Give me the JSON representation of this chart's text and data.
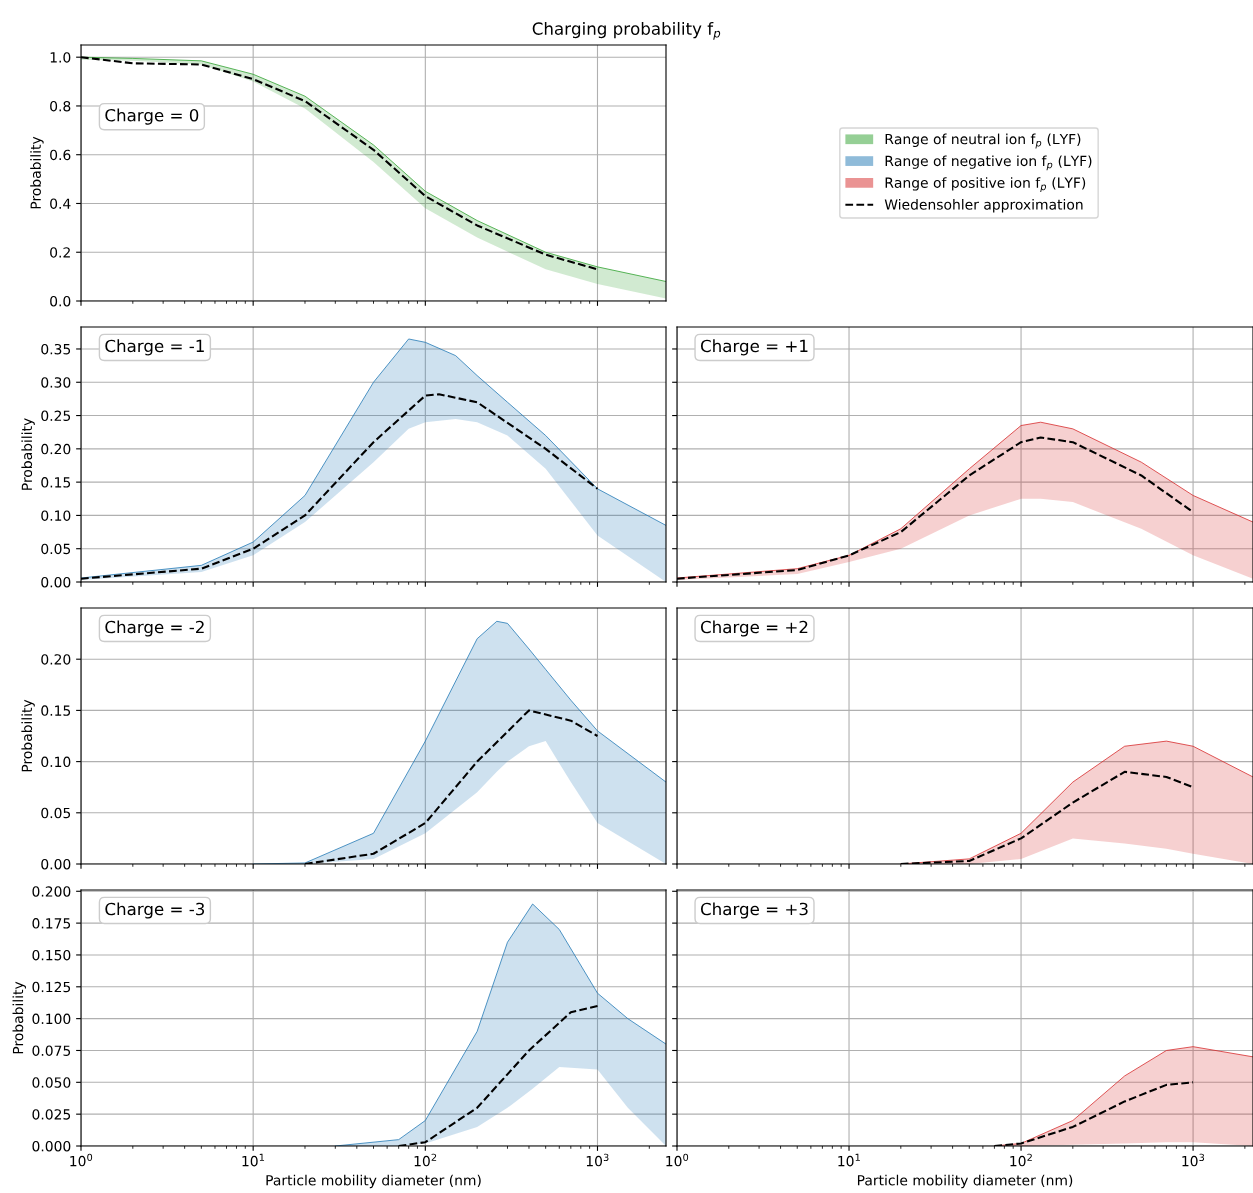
{
  "chart_data": [
    {
      "type": "line",
      "title": "Charging probability f$_{p}$",
      "ylabel": "Probability",
      "annotations": [
        "Charge = 0"
      ],
      "log": "x",
      "grid": true,
      "legend": "right",
      "tick_labels": "y",
      "xlim": [
        1,
        2500
      ],
      "xticks": [
        {
          "value": 1,
          "label": null
        },
        {
          "value": 10,
          "label": null
        },
        {
          "value": 100,
          "label": null
        },
        {
          "value": 1000,
          "label": null
        }
      ],
      "ylim": [
        0,
        1.05
      ],
      "yticks": [
        {
          "value": 0,
          "label": "0.0"
        },
        {
          "value": 0.2,
          "label": "0.2"
        },
        {
          "value": 0.4,
          "label": "0.4"
        },
        {
          "value": 0.6,
          "label": "0.6"
        },
        {
          "value": 0.8,
          "label": "0.8"
        },
        {
          "value": 1,
          "label": "1.0"
        }
      ],
      "series": [
        {
          "name": "Range of neutral ion f$_{p}$ (LYF)",
          "color": "#2ca02c",
          "x": [
            1,
            2,
            5,
            10,
            20,
            50,
            100,
            200,
            500,
            1000,
            2500
          ],
          "lower": [
            0.99,
            0.985,
            0.97,
            0.9,
            0.79,
            0.57,
            0.38,
            0.26,
            0.13,
            0.07,
            0.01
          ],
          "upper": [
            1.0,
            0.995,
            0.985,
            0.93,
            0.84,
            0.64,
            0.45,
            0.33,
            0.2,
            0.14,
            0.08
          ],
          "values": [
            1.0,
            0.995,
            0.985,
            0.93,
            0.84,
            0.64,
            0.45,
            0.33,
            0.2,
            0.14,
            0.08
          ]
        },
        {
          "name": "Wiedensohler approximation",
          "color": "#000000",
          "line_style": "dashed",
          "x": [
            1,
            2,
            5,
            10,
            20,
            50,
            100,
            200,
            500,
            1000
          ],
          "values": [
            1.0,
            0.975,
            0.97,
            0.91,
            0.82,
            0.62,
            0.43,
            0.31,
            0.19,
            0.13
          ]
        }
      ]
    },
    {
      "type": "line",
      "ylabel": "Probability",
      "annotations": [
        "Charge = -1"
      ],
      "log": "x",
      "grid": true,
      "tick_labels": "y",
      "xlim": [
        1,
        2500
      ],
      "xticks": [
        {
          "value": 1,
          "label": null
        },
        {
          "value": 10,
          "label": null
        },
        {
          "value": 100,
          "label": null
        },
        {
          "value": 1000,
          "label": null
        }
      ],
      "ylim": [
        0,
        0.383
      ],
      "yticks": [
        {
          "value": 0,
          "label": "0.00"
        },
        {
          "value": 0.05,
          "label": "0.05"
        },
        {
          "value": 0.1,
          "label": "0.10"
        },
        {
          "value": 0.15,
          "label": "0.15"
        },
        {
          "value": 0.2,
          "label": "0.20"
        },
        {
          "value": 0.25,
          "label": "0.25"
        },
        {
          "value": 0.3,
          "label": "0.30"
        },
        {
          "value": 0.35,
          "label": "0.35"
        }
      ],
      "series": [
        {
          "name": "Range of negative ion f$_{p}$ (LYF)",
          "color": "#1f77b4",
          "x": [
            1,
            5,
            10,
            20,
            50,
            80,
            100,
            150,
            200,
            300,
            500,
            1000,
            2500
          ],
          "lower": [
            0.003,
            0.015,
            0.04,
            0.09,
            0.18,
            0.23,
            0.24,
            0.245,
            0.24,
            0.22,
            0.17,
            0.07,
            0.0
          ],
          "upper": [
            0.006,
            0.025,
            0.06,
            0.13,
            0.3,
            0.365,
            0.36,
            0.34,
            0.31,
            0.27,
            0.22,
            0.14,
            0.085
          ],
          "values": [
            0.006,
            0.025,
            0.06,
            0.13,
            0.3,
            0.365,
            0.36,
            0.34,
            0.31,
            0.27,
            0.22,
            0.14,
            0.085
          ]
        },
        {
          "color": "#000000",
          "line_style": "dashed",
          "x": [
            1,
            5,
            10,
            20,
            50,
            100,
            120,
            200,
            500,
            1000
          ],
          "values": [
            0.005,
            0.02,
            0.05,
            0.1,
            0.21,
            0.28,
            0.282,
            0.27,
            0.2,
            0.14
          ]
        }
      ]
    },
    {
      "type": "line",
      "annotations": [
        "Charge = +1"
      ],
      "log": "x",
      "grid": true,
      "tick_labels": false,
      "xlim": [
        1,
        2230
      ],
      "xticks": [
        {
          "value": 1,
          "label": null
        },
        {
          "value": 10,
          "label": null
        },
        {
          "value": 100,
          "label": null
        },
        {
          "value": 1000,
          "label": null
        }
      ],
      "ylim": [
        0,
        0.383
      ],
      "yticks": [
        {
          "value": 0,
          "label": null
        },
        {
          "value": 0.05,
          "label": null
        },
        {
          "value": 0.1,
          "label": null
        },
        {
          "value": 0.15,
          "label": null
        },
        {
          "value": 0.2,
          "label": null
        },
        {
          "value": 0.25,
          "label": null
        },
        {
          "value": 0.3,
          "label": null
        },
        {
          "value": 0.35,
          "label": null
        }
      ],
      "series": [
        {
          "name": "Range of positive ion f$_{p}$ (LYF)",
          "color": "#d62728",
          "x": [
            1,
            5,
            10,
            20,
            50,
            100,
            130,
            200,
            500,
            1000,
            2230
          ],
          "lower": [
            0.003,
            0.012,
            0.03,
            0.05,
            0.1,
            0.125,
            0.125,
            0.12,
            0.08,
            0.04,
            0.005
          ],
          "upper": [
            0.006,
            0.02,
            0.04,
            0.08,
            0.17,
            0.235,
            0.24,
            0.23,
            0.18,
            0.13,
            0.09
          ],
          "values": [
            0.006,
            0.02,
            0.04,
            0.08,
            0.17,
            0.235,
            0.24,
            0.23,
            0.18,
            0.13,
            0.09
          ]
        },
        {
          "color": "#000000",
          "line_style": "dashed",
          "x": [
            1,
            5,
            10,
            20,
            50,
            100,
            130,
            200,
            500,
            1000
          ],
          "values": [
            0.005,
            0.018,
            0.04,
            0.075,
            0.16,
            0.21,
            0.217,
            0.21,
            0.16,
            0.105
          ]
        }
      ]
    },
    {
      "type": "line",
      "ylabel": "Probability",
      "annotations": [
        "Charge = -2"
      ],
      "log": "x",
      "grid": true,
      "tick_labels": "y",
      "xlim": [
        1,
        2500
      ],
      "xticks": [
        {
          "value": 1,
          "label": null
        },
        {
          "value": 10,
          "label": null
        },
        {
          "value": 100,
          "label": null
        },
        {
          "value": 1000,
          "label": null
        }
      ],
      "ylim": [
        0,
        0.25
      ],
      "yticks": [
        {
          "value": 0,
          "label": "0.00"
        },
        {
          "value": 0.05,
          "label": "0.05"
        },
        {
          "value": 0.1,
          "label": "0.10"
        },
        {
          "value": 0.15,
          "label": "0.15"
        },
        {
          "value": 0.2,
          "label": "0.20"
        }
      ],
      "series": [
        {
          "color": "#1f77b4",
          "x": [
            10,
            20,
            50,
            100,
            200,
            260,
            300,
            400,
            500,
            700,
            1000,
            2500
          ],
          "lower": [
            0,
            0,
            0.005,
            0.03,
            0.07,
            0.09,
            0.1,
            0.115,
            0.12,
            0.08,
            0.04,
            0.0
          ],
          "upper": [
            0,
            0.001,
            0.03,
            0.12,
            0.22,
            0.237,
            0.235,
            0.21,
            0.19,
            0.16,
            0.13,
            0.08
          ],
          "values": [
            0,
            0.001,
            0.03,
            0.12,
            0.22,
            0.237,
            0.235,
            0.21,
            0.19,
            0.16,
            0.13,
            0.08
          ]
        },
        {
          "color": "#000000",
          "line_style": "dashed",
          "x": [
            20,
            50,
            100,
            200,
            400,
            700,
            1000
          ],
          "values": [
            0.0,
            0.01,
            0.04,
            0.1,
            0.15,
            0.14,
            0.125
          ]
        }
      ]
    },
    {
      "type": "line",
      "annotations": [
        "Charge = +2"
      ],
      "log": "x",
      "grid": true,
      "tick_labels": false,
      "xlim": [
        1,
        2230
      ],
      "xticks": [
        {
          "value": 1,
          "label": null
        },
        {
          "value": 10,
          "label": null
        },
        {
          "value": 100,
          "label": null
        },
        {
          "value": 1000,
          "label": null
        }
      ],
      "ylim": [
        0,
        0.25
      ],
      "yticks": [
        {
          "value": 0,
          "label": null
        },
        {
          "value": 0.05,
          "label": null
        },
        {
          "value": 0.1,
          "label": null
        },
        {
          "value": 0.15,
          "label": null
        },
        {
          "value": 0.2,
          "label": null
        }
      ],
      "series": [
        {
          "color": "#d62728",
          "x": [
            20,
            50,
            100,
            200,
            400,
            700,
            1000,
            2230
          ],
          "lower": [
            0,
            0,
            0.005,
            0.025,
            0.02,
            0.015,
            0.01,
            0.0
          ],
          "upper": [
            0,
            0.005,
            0.03,
            0.08,
            0.115,
            0.12,
            0.115,
            0.085
          ],
          "values": [
            0,
            0.005,
            0.03,
            0.08,
            0.115,
            0.12,
            0.115,
            0.085
          ]
        },
        {
          "color": "#000000",
          "line_style": "dashed",
          "x": [
            20,
            50,
            100,
            200,
            400,
            700,
            1000
          ],
          "values": [
            0,
            0.003,
            0.025,
            0.06,
            0.09,
            0.085,
            0.075
          ]
        }
      ]
    },
    {
      "type": "line",
      "ylabel": "Probability",
      "xlabel": "Particle mobility diameter (nm)",
      "annotations": [
        "Charge = -3"
      ],
      "log": "x",
      "grid": true,
      "xlim": [
        1,
        2500
      ],
      "xticks": [
        {
          "value": 1,
          "label": "10$^{0}$"
        },
        {
          "value": 10,
          "label": "10$^{1}$"
        },
        {
          "value": 100,
          "label": "10$^{2}$"
        },
        {
          "value": 1000,
          "label": "10$^{3}$"
        }
      ],
      "ylim": [
        0,
        0.201
      ],
      "yticks": [
        {
          "value": 0,
          "label": "0.000"
        },
        {
          "value": 0.025,
          "label": "0.025"
        },
        {
          "value": 0.05,
          "label": "0.050"
        },
        {
          "value": 0.075,
          "label": "0.075"
        },
        {
          "value": 0.1,
          "label": "0.100"
        },
        {
          "value": 0.125,
          "label": "0.125"
        },
        {
          "value": 0.15,
          "label": "0.150"
        },
        {
          "value": 0.175,
          "label": "0.175"
        },
        {
          "value": 0.2,
          "label": "0.200"
        }
      ],
      "series": [
        {
          "color": "#1f77b4",
          "x": [
            30,
            70,
            100,
            200,
            300,
            420,
            600,
            1000,
            1500,
            2500
          ],
          "lower": [
            0,
            0,
            0.002,
            0.015,
            0.03,
            0.045,
            0.062,
            0.06,
            0.03,
            0.0
          ],
          "upper": [
            0,
            0.005,
            0.02,
            0.09,
            0.16,
            0.19,
            0.17,
            0.12,
            0.1,
            0.08
          ],
          "values": [
            0,
            0.005,
            0.02,
            0.09,
            0.16,
            0.19,
            0.17,
            0.12,
            0.1,
            0.08
          ]
        },
        {
          "color": "#000000",
          "line_style": "dashed",
          "x": [
            70,
            100,
            200,
            400,
            700,
            1000
          ],
          "values": [
            0,
            0.003,
            0.03,
            0.075,
            0.105,
            0.11
          ]
        }
      ]
    },
    {
      "type": "line",
      "xlabel": "Particle mobility diameter (nm)",
      "annotations": [
        "Charge = +3"
      ],
      "log": "x",
      "grid": true,
      "tick_labels": "x",
      "xlim": [
        1,
        2230
      ],
      "xticks": [
        {
          "value": 1,
          "label": "10$^{0}$"
        },
        {
          "value": 10,
          "label": "10$^{1}$"
        },
        {
          "value": 100,
          "label": "10$^{2}$"
        },
        {
          "value": 1000,
          "label": "10$^{3}$"
        }
      ],
      "ylim": [
        0,
        0.201
      ],
      "yticks": [
        {
          "value": 0,
          "label": null
        },
        {
          "value": 0.025,
          "label": null
        },
        {
          "value": 0.05,
          "label": null
        },
        {
          "value": 0.075,
          "label": null
        },
        {
          "value": 0.1,
          "label": null
        },
        {
          "value": 0.125,
          "label": null
        },
        {
          "value": 0.15,
          "label": null
        },
        {
          "value": 0.175,
          "label": null
        },
        {
          "value": 0.2,
          "label": null
        }
      ],
      "series": [
        {
          "color": "#d62728",
          "x": [
            70,
            100,
            200,
            400,
            700,
            1000,
            2230
          ],
          "lower": [
            0,
            0,
            0.001,
            0.002,
            0.003,
            0.003,
            0.0
          ],
          "upper": [
            0,
            0.002,
            0.02,
            0.055,
            0.075,
            0.078,
            0.07
          ],
          "values": [
            0,
            0.002,
            0.02,
            0.055,
            0.075,
            0.078,
            0.07
          ]
        },
        {
          "color": "#000000",
          "line_style": "dashed",
          "x": [
            70,
            100,
            200,
            400,
            700,
            1000
          ],
          "values": [
            0,
            0.002,
            0.015,
            0.035,
            0.048,
            0.05
          ]
        }
      ]
    }
  ]
}
